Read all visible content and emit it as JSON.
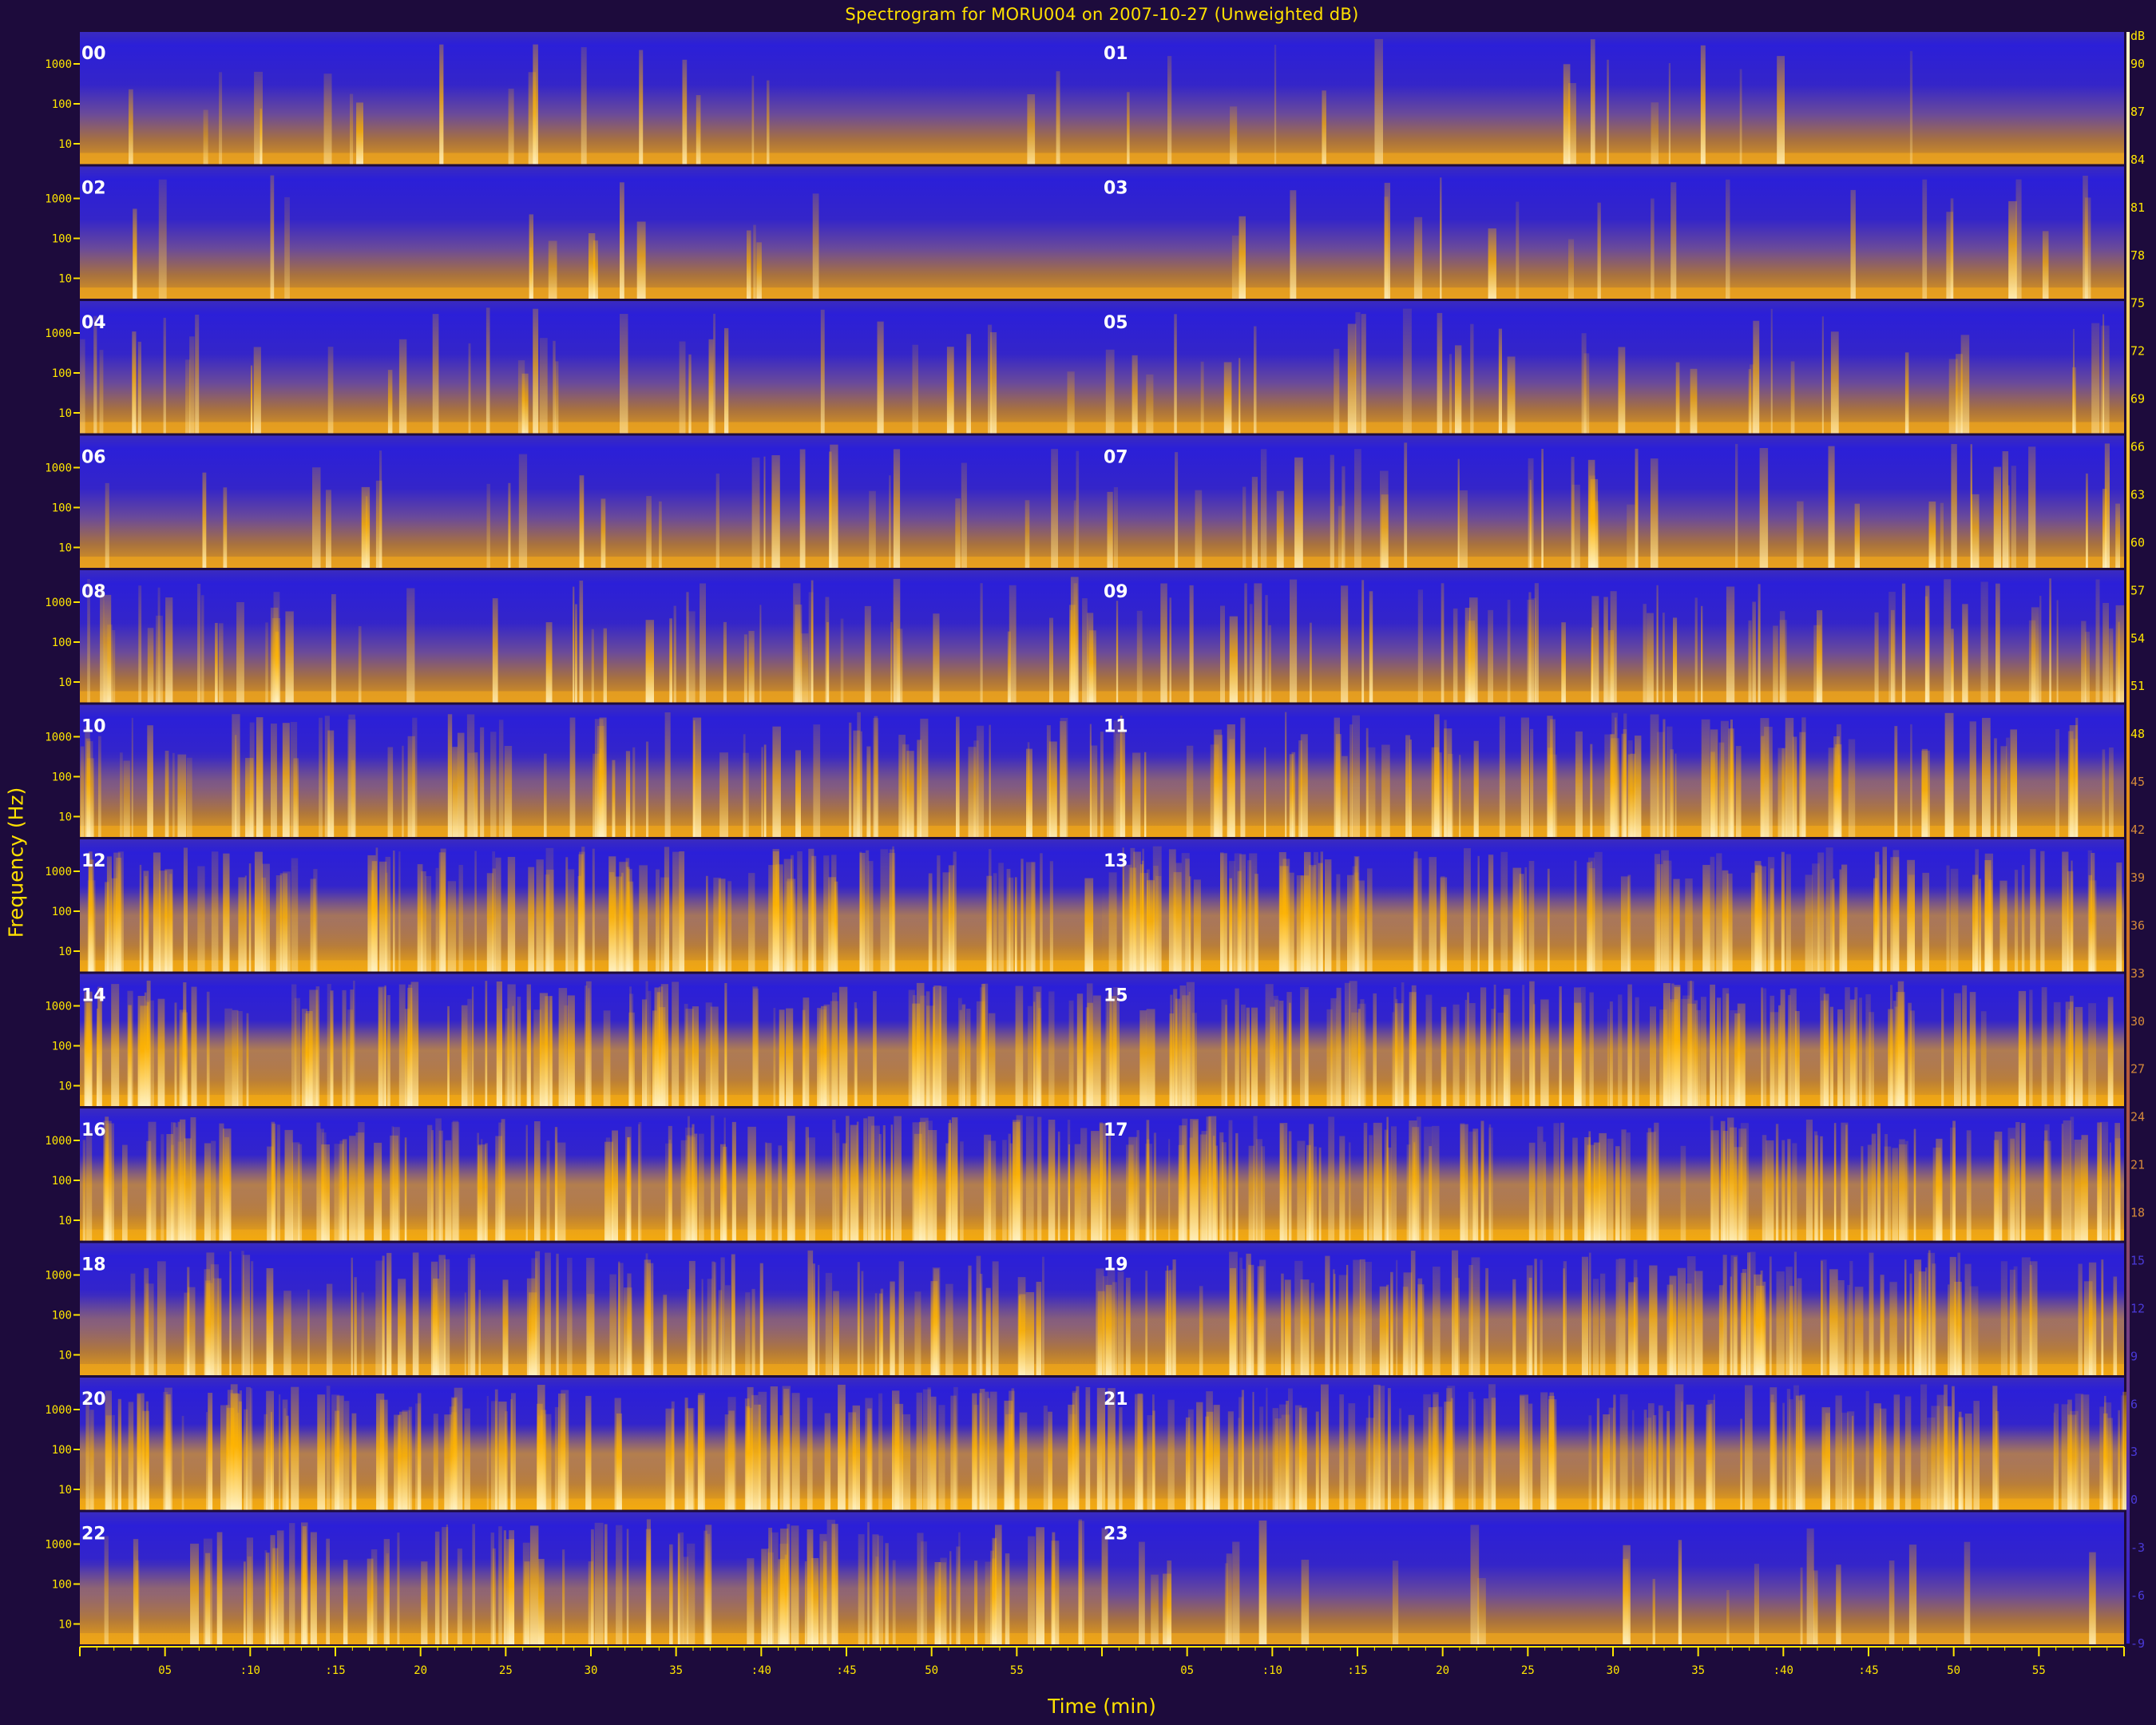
{
  "chart_data": {
    "type": "heatmap",
    "title": "Spectrogram for MORU004 on 2007-10-27 (Unweighted dB)",
    "xlabel": "Time (min)",
    "ylabel": "Frequency (Hz)",
    "colorbar_unit": "dB",
    "colorbar_ticks": [
      90,
      87,
      84,
      81,
      78,
      75,
      72,
      69,
      66,
      63,
      60,
      57,
      54,
      51,
      48,
      45,
      42,
      39,
      36,
      33,
      30,
      27,
      24,
      21,
      18,
      15,
      12,
      9,
      6,
      3,
      0,
      -3,
      -6,
      -9
    ],
    "colorbar_range": [
      -9,
      90
    ],
    "colors": {
      "low": "#2b1fd8",
      "mid": "#c0803c",
      "high": "#ffb400",
      "peak": "#fff6d0",
      "background": "#1d0b3c",
      "text": "#ffe600"
    },
    "hour_labels": [
      "00",
      "01",
      "02",
      "03",
      "04",
      "05",
      "06",
      "07",
      "08",
      "09",
      "10",
      "11",
      "12",
      "13",
      "14",
      "15",
      "16",
      "17",
      "18",
      "19",
      "20",
      "21",
      "22",
      "23"
    ],
    "time_ticks": [
      "05",
      ":10",
      ":15",
      "20",
      "25",
      "30",
      "35",
      ":40",
      ":45",
      "50",
      "55"
    ],
    "freq_ticks": [
      "1000",
      "100",
      "10"
    ],
    "hourly_activity": [
      0.08,
      0.06,
      0.05,
      0.1,
      0.18,
      0.2,
      0.15,
      0.25,
      0.35,
      0.4,
      0.5,
      0.58,
      0.72,
      0.75,
      0.78,
      0.78,
      0.8,
      0.78,
      0.55,
      0.7,
      0.8,
      0.75,
      0.6,
      0.12
    ]
  }
}
